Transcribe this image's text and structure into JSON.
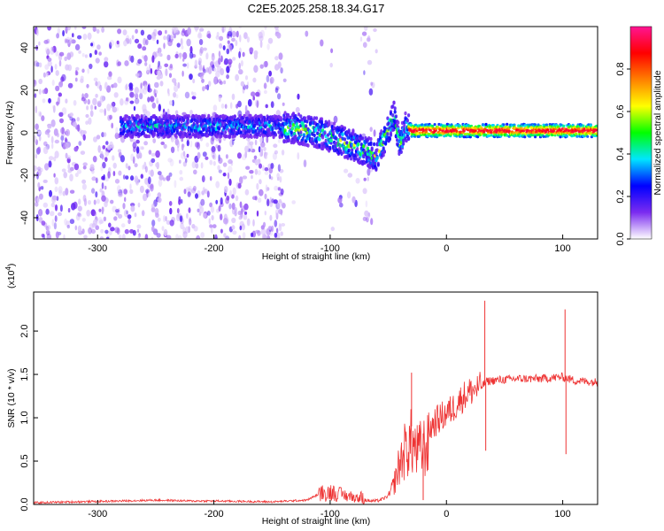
{
  "title": "C2E5.2025.258.18.34.G17",
  "chart_data": [
    {
      "type": "heatmap",
      "xlabel": "Height of straight line (km)",
      "ylabel": "Frequency (Hz)",
      "xlim": [
        -355,
        130
      ],
      "ylim": [
        -50,
        50
      ],
      "xticks": [
        -300,
        -200,
        -100,
        0,
        100
      ],
      "yticks": [
        -40,
        -20,
        0,
        20,
        40
      ],
      "colorbar": {
        "label": "Normalized spectral amplitude",
        "range": [
          0,
          1
        ],
        "ticks": [
          "0.0",
          "0.2",
          "0.4",
          "0.6",
          "0.8"
        ],
        "tick_values": [
          0.0,
          0.2,
          0.4,
          0.6,
          0.8
        ],
        "colors": [
          "#ffffff",
          "#7b2cf0",
          "#0000ff",
          "#00e5ff",
          "#00ff00",
          "#ffff00",
          "#ff8000",
          "#ff0000",
          "#ff1493"
        ]
      },
      "ridge": {
        "x": [
          -275,
          -250,
          -220,
          -180,
          -150,
          -130,
          -110,
          -95,
          -80,
          -68,
          -60,
          -55,
          -50,
          -45,
          -40,
          -35,
          -30,
          0,
          30,
          60,
          90,
          130
        ],
        "y": [
          3,
          3,
          3,
          3,
          3,
          2,
          0,
          -3,
          -6,
          -9,
          -11,
          -5,
          1,
          8,
          -6,
          3,
          1,
          1,
          1,
          1,
          1,
          1
        ]
      }
    },
    {
      "type": "line",
      "xlabel": "Height of straight line (km)",
      "ylabel": "SNR (10 * v/v)",
      "y_multiplier": "(x10",
      "y_multiplier_exp": "4",
      "y_multiplier_close": ")",
      "xlim": [
        -355,
        130
      ],
      "ylim": [
        0,
        2.45
      ],
      "xticks": [
        -300,
        -200,
        -100,
        0,
        100
      ],
      "yticks": [
        "0.0",
        "0.5",
        "1.0",
        "1.5",
        "2.0"
      ],
      "ytick_values": [
        0.0,
        0.5,
        1.0,
        1.5,
        2.0
      ],
      "color": "#ee3333",
      "envelope": {
        "x": [
          -355,
          -320,
          -280,
          -250,
          -220,
          -200,
          -150,
          -120,
          -105,
          -100,
          -95,
          -90,
          -85,
          -80,
          -75,
          -70,
          -65,
          -60,
          -55,
          -50,
          -45,
          -40,
          -35,
          -30,
          -25,
          -20,
          -15,
          -10,
          -5,
          0,
          5,
          10,
          15,
          20,
          25,
          30,
          35,
          40,
          50,
          60,
          70,
          80,
          90,
          100,
          105,
          110,
          120,
          130
        ],
        "y": [
          0.02,
          0.03,
          0.04,
          0.05,
          0.04,
          0.04,
          0.03,
          0.05,
          0.15,
          0.2,
          0.17,
          0.15,
          0.13,
          0.12,
          0.08,
          0.05,
          0.04,
          0.04,
          0.06,
          0.1,
          0.3,
          0.6,
          0.8,
          0.9,
          0.75,
          0.82,
          0.86,
          0.95,
          1.0,
          1.05,
          1.1,
          1.18,
          1.25,
          1.3,
          1.33,
          1.36,
          1.42,
          1.43,
          1.44,
          1.45,
          1.45,
          1.45,
          1.46,
          1.47,
          1.45,
          1.43,
          1.42,
          1.41
        ]
      },
      "spikes": [
        {
          "x": 33,
          "y": 2.35
        },
        {
          "x": 33.8,
          "y": 0.62
        },
        {
          "x": 102,
          "y": 2.25
        },
        {
          "x": 102.8,
          "y": 0.58
        },
        {
          "x": -30,
          "y": 1.52
        },
        {
          "x": -20,
          "y": 0.05
        }
      ]
    }
  ]
}
